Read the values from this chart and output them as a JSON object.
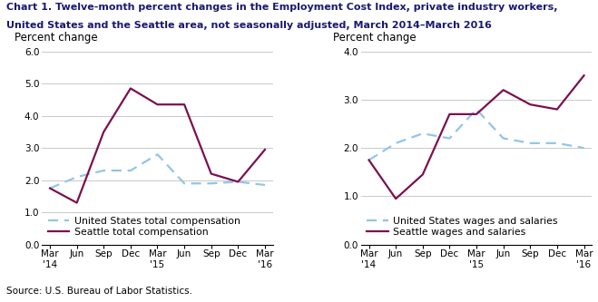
{
  "title_line1": "Chart 1. Twelve-month percent changes in the Employment Cost Index, private industry workers,",
  "title_line2": "United States and the Seattle area, not seasonally adjusted, March 2014–March 2016",
  "source": "Source: U.S. Bureau of Labor Statistics.",
  "x_labels": [
    "Mar\n'14",
    "Jun",
    "Sep",
    "Dec",
    "Mar\n'15",
    "Jun",
    "Sep",
    "Dec",
    "Mar\n'16"
  ],
  "left_chart": {
    "ylabel": "Percent change",
    "ylim": [
      0.0,
      6.0
    ],
    "yticks": [
      0.0,
      1.0,
      2.0,
      3.0,
      4.0,
      5.0,
      6.0
    ],
    "us_vals": [
      1.75,
      2.1,
      2.3,
      2.3,
      2.8,
      1.9,
      1.9,
      1.95,
      1.85
    ],
    "seattle_vals": [
      1.75,
      1.3,
      3.5,
      4.85,
      4.35,
      4.35,
      2.2,
      1.95,
      2.95
    ],
    "legend1": "United States total compensation",
    "legend2": "Seattle total compensation"
  },
  "right_chart": {
    "ylabel": "Percent change",
    "ylim": [
      0.0,
      4.0
    ],
    "yticks": [
      0.0,
      1.0,
      2.0,
      3.0,
      4.0
    ],
    "us_vals": [
      1.75,
      2.1,
      2.3,
      2.2,
      2.8,
      2.2,
      2.1,
      2.1,
      2.0
    ],
    "seattle_vals": [
      1.75,
      0.95,
      1.45,
      2.7,
      2.7,
      3.2,
      2.9,
      2.8,
      3.5
    ],
    "legend1": "United States wages and salaries",
    "legend2": "Seattle wages and salaries"
  },
  "us_line_color": "#92C5E8",
  "seattle_line_color": "#7B1050",
  "line_width": 1.6,
  "title_fontsize": 8.0,
  "axis_label_fontsize": 8.5,
  "tick_fontsize": 7.5,
  "legend_fontsize": 7.8,
  "source_fontsize": 7.5
}
